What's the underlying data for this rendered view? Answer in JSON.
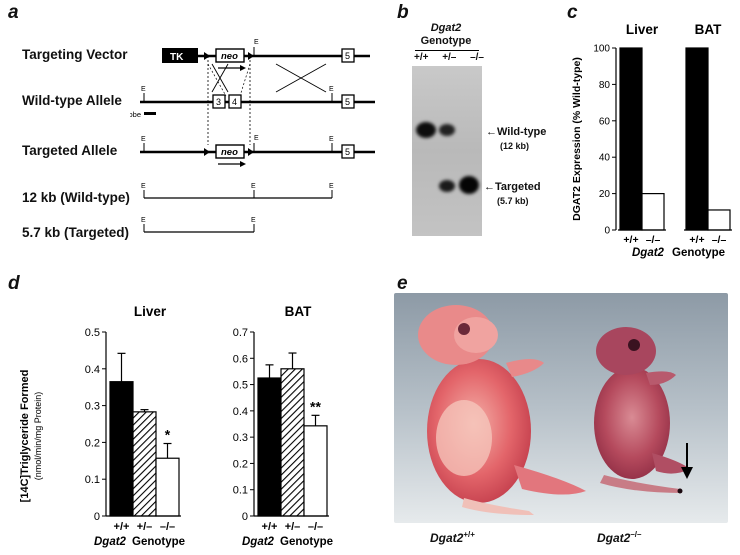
{
  "panels": {
    "a": "a",
    "b": "b",
    "c": "c",
    "d": "d",
    "e": "e"
  },
  "panel_a": {
    "rows": [
      "Targeting Vector",
      "Wild-type Allele",
      "Targeted Allele",
      "12 kb (Wild-type)",
      "5.7 kb (Targeted)"
    ],
    "tk": "TK",
    "neo": "neo",
    "probe": "Probe",
    "e": "E",
    "exon3": "3",
    "exon4": "4",
    "exon5": "5"
  },
  "panel_b": {
    "title_gene": "Dgat2",
    "title_sub": "Genotype",
    "lanes": [
      "+/+",
      "+/–",
      "–/–"
    ],
    "band_wt": "Wild-type",
    "band_wt_size": "(12 kb)",
    "band_t": "Targeted",
    "band_t_size": "(5.7 kb)"
  },
  "chart_data": [
    {
      "type": "bar",
      "panel": "c",
      "ylabel": "DGAT2 Expression (% Wild-type)",
      "ylim": [
        0,
        100
      ],
      "yticks": [
        0,
        20,
        40,
        60,
        80,
        100
      ],
      "groups": [
        "Liver",
        "BAT"
      ],
      "categories": [
        "+/+",
        "–/–"
      ],
      "series": [
        {
          "name": "Liver",
          "values": [
            100,
            20
          ]
        },
        {
          "name": "BAT",
          "values": [
            100,
            11
          ]
        }
      ],
      "xlabel_gene": "Dgat2",
      "xlabel_rest": "Genotype"
    },
    {
      "type": "bar",
      "panel": "d-liver",
      "title": "Liver",
      "ylabel": "[14C]Triglyceride Formed",
      "ylabel2": "(nmol/min/mg Protein)",
      "ylim": [
        0,
        0.5
      ],
      "yticks": [
        "0",
        "0.1",
        "0.2",
        "0.3",
        "0.4",
        "0.5"
      ],
      "categories": [
        "+/+",
        "+/–",
        "–/–"
      ],
      "values": [
        0.365,
        0.283,
        0.157
      ],
      "errors": [
        0.077,
        0.006,
        0.04
      ],
      "annotation": "*",
      "xlabel_gene": "Dgat2",
      "xlabel_rest": "Genotype"
    },
    {
      "type": "bar",
      "panel": "d-bat",
      "title": "BAT",
      "ylim": [
        0,
        0.7
      ],
      "yticks": [
        "0",
        "0.1",
        "0.2",
        "0.3",
        "0.4",
        "0.5",
        "0.6",
        "0.7"
      ],
      "categories": [
        "+/+",
        "+/–",
        "–/–"
      ],
      "values": [
        0.525,
        0.56,
        0.343
      ],
      "errors": [
        0.05,
        0.06,
        0.04
      ],
      "annotation": "**",
      "xlabel_gene": "Dgat2",
      "xlabel_rest": "Genotype"
    }
  ],
  "panel_e": {
    "left_gene": "Dgat2",
    "left_sup": "+/+",
    "right_gene": "Dgat2",
    "right_sup": "–/–"
  }
}
